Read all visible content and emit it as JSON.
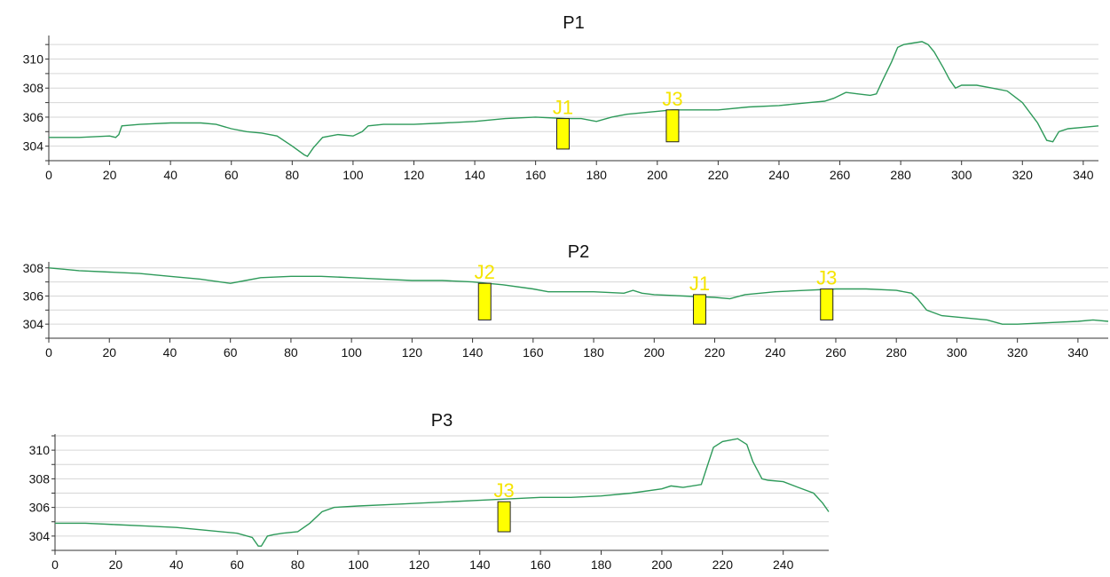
{
  "colors": {
    "line": "#2e9a5a",
    "marker": "#ffff00",
    "label": "#f5e400",
    "grid": "#d6d6d6"
  },
  "chart_data": [
    {
      "type": "line",
      "title": "P1",
      "xlim": [
        0,
        345
      ],
      "ylim": [
        303,
        311.5
      ],
      "xticks": [
        0,
        20,
        40,
        60,
        80,
        100,
        120,
        140,
        160,
        180,
        200,
        220,
        240,
        260,
        280,
        300,
        320,
        340
      ],
      "yticks": [
        304,
        306,
        308,
        310
      ],
      "grid": true,
      "series": [
        {
          "x": [
            0,
            10,
            20,
            22,
            23,
            24,
            30,
            40,
            50,
            55,
            60,
            65,
            70,
            75,
            80,
            84,
            85,
            87,
            90,
            95,
            100,
            103,
            105,
            110,
            120,
            130,
            140,
            150,
            160,
            170,
            175,
            180,
            185,
            190,
            200,
            205,
            210,
            220,
            230,
            240,
            250,
            255,
            258,
            262,
            266,
            270,
            272,
            274,
            277,
            279,
            281,
            284,
            287,
            289,
            291,
            294,
            296,
            298,
            300,
            305,
            310,
            315,
            320,
            325,
            328,
            330,
            332,
            335,
            340,
            345
          ],
          "y": [
            304.6,
            304.6,
            304.7,
            304.6,
            304.8,
            305.4,
            305.5,
            305.6,
            305.6,
            305.5,
            305.2,
            305.0,
            304.9,
            304.7,
            304.0,
            303.4,
            303.3,
            303.9,
            304.6,
            304.8,
            304.7,
            305.0,
            305.4,
            305.5,
            305.5,
            305.6,
            305.7,
            305.9,
            306.0,
            305.9,
            305.9,
            305.7,
            306.0,
            306.2,
            306.4,
            306.5,
            306.5,
            306.5,
            306.7,
            306.8,
            307.0,
            307.1,
            307.3,
            307.7,
            307.6,
            307.5,
            307.6,
            308.5,
            309.8,
            310.8,
            311.0,
            311.1,
            311.2,
            311.0,
            310.5,
            309.4,
            308.6,
            308.0,
            308.2,
            308.2,
            308.0,
            307.8,
            307.0,
            305.6,
            304.4,
            304.3,
            305.0,
            305.2,
            305.3,
            305.4
          ]
        }
      ],
      "markers": [
        {
          "label": "J1",
          "x": 169,
          "y1": 303.8,
          "y2": 305.9
        },
        {
          "label": "J3",
          "x": 205,
          "y1": 304.3,
          "y2": 306.5
        }
      ]
    },
    {
      "type": "line",
      "title": "P2",
      "xlim": [
        0,
        350
      ],
      "ylim": [
        303,
        308.3
      ],
      "xticks": [
        0,
        20,
        40,
        60,
        80,
        100,
        120,
        140,
        160,
        180,
        200,
        220,
        240,
        260,
        280,
        300,
        320,
        340
      ],
      "yticks": [
        304,
        306,
        308
      ],
      "grid": true,
      "series": [
        {
          "x": [
            0,
            5,
            10,
            20,
            30,
            40,
            50,
            60,
            65,
            70,
            80,
            90,
            100,
            110,
            120,
            130,
            140,
            150,
            160,
            165,
            170,
            180,
            190,
            193,
            196,
            200,
            210,
            220,
            225,
            230,
            240,
            250,
            260,
            270,
            280,
            285,
            287,
            290,
            295,
            300,
            310,
            315,
            320,
            330,
            340,
            345,
            350
          ],
          "y": [
            308.0,
            307.9,
            307.8,
            307.7,
            307.6,
            307.4,
            307.2,
            306.9,
            307.1,
            307.3,
            307.4,
            307.4,
            307.3,
            307.2,
            307.1,
            307.1,
            307.0,
            306.8,
            306.5,
            306.3,
            306.3,
            306.3,
            306.2,
            306.4,
            306.2,
            306.1,
            306.0,
            305.9,
            305.8,
            306.1,
            306.3,
            306.4,
            306.5,
            306.5,
            306.4,
            306.2,
            305.8,
            305.0,
            304.6,
            304.5,
            304.3,
            304.0,
            304.0,
            304.1,
            304.2,
            304.3,
            304.2
          ]
        }
      ],
      "markers": [
        {
          "label": "J2",
          "x": 144,
          "y1": 304.3,
          "y2": 306.9
        },
        {
          "label": "J1",
          "x": 215,
          "y1": 304.0,
          "y2": 306.1
        },
        {
          "label": "J3",
          "x": 257,
          "y1": 304.3,
          "y2": 306.5
        }
      ]
    },
    {
      "type": "line",
      "title": "P3",
      "xlim": [
        0,
        255
      ],
      "ylim": [
        303,
        311
      ],
      "xticks": [
        0,
        20,
        40,
        60,
        80,
        100,
        120,
        140,
        160,
        180,
        200,
        220,
        240
      ],
      "yticks": [
        304,
        306,
        308,
        310
      ],
      "grid": true,
      "series": [
        {
          "x": [
            0,
            10,
            20,
            30,
            40,
            50,
            60,
            65,
            67,
            68,
            70,
            72,
            75,
            80,
            84,
            88,
            92,
            100,
            110,
            120,
            130,
            140,
            150,
            160,
            170,
            180,
            190,
            200,
            203,
            207,
            213,
            215,
            217,
            220,
            225,
            228,
            230,
            233,
            235,
            240,
            245,
            250,
            253,
            255
          ],
          "y": [
            304.9,
            304.9,
            304.8,
            304.7,
            304.6,
            304.4,
            304.2,
            303.9,
            303.3,
            303.3,
            304.0,
            304.1,
            304.2,
            304.3,
            304.9,
            305.7,
            306.0,
            306.1,
            306.2,
            306.3,
            306.4,
            306.5,
            306.6,
            306.7,
            306.7,
            306.8,
            307.0,
            307.3,
            307.5,
            307.4,
            307.6,
            308.9,
            310.2,
            310.6,
            310.8,
            310.4,
            309.2,
            308.0,
            307.9,
            307.8,
            307.4,
            307.0,
            306.3,
            305.7
          ]
        }
      ],
      "markers": [
        {
          "label": "J3",
          "x": 148,
          "y1": 304.3,
          "y2": 306.4
        }
      ]
    }
  ]
}
